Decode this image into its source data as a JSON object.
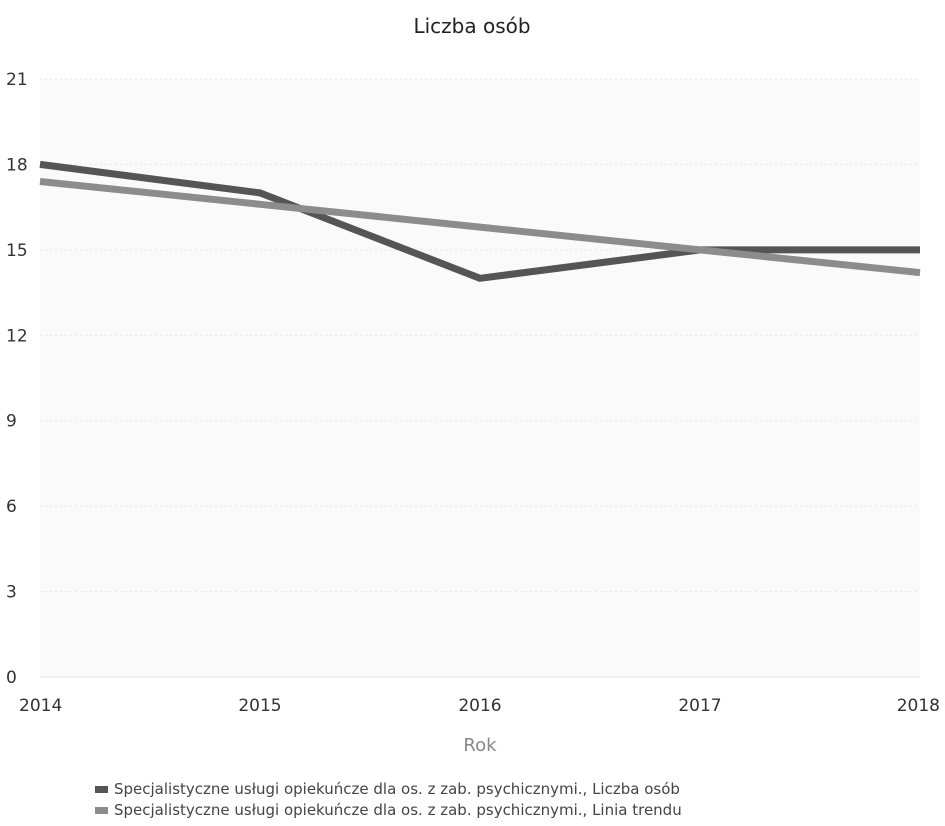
{
  "chart_data": {
    "type": "line",
    "title": "Liczba osób",
    "xlabel": "Rok",
    "ylabel": "",
    "x": [
      "2014",
      "2015",
      "2016",
      "2017",
      "2018"
    ],
    "ylim": [
      0,
      21
    ],
    "yticks": [
      "0",
      "3",
      "6",
      "9",
      "12",
      "15",
      "18",
      "21"
    ],
    "grid": true,
    "legend_position": "bottom",
    "series": [
      {
        "name": "Specjalistyczne usługi opiekuńcze dla os. z zab. psychicznymi., Liczba osób",
        "values": [
          18,
          17,
          14,
          15,
          15
        ],
        "color": "#555555"
      },
      {
        "name": "Specjalistyczne usługi opiekuńcze dla os. z zab. psychicznymi., Linia trendu",
        "values": [
          17.4,
          16.6,
          15.8,
          15.0,
          14.2
        ],
        "color": "#8c8c8c"
      }
    ]
  }
}
